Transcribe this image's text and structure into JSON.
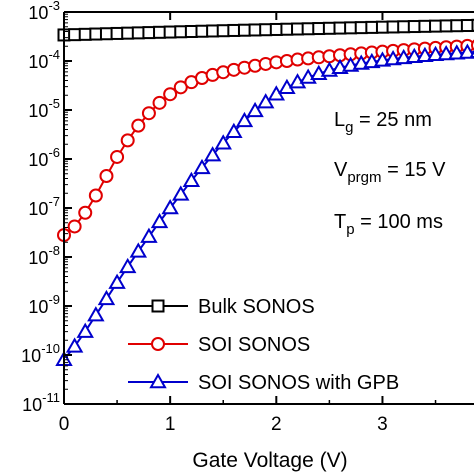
{
  "chart_data": {
    "type": "line",
    "xlabel": "Gate Voltage (V)",
    "ylabel": "",
    "xlim": [
      0,
      3.9
    ],
    "ylim": [
      1e-11,
      0.001
    ],
    "y_scale": "log",
    "grid": false,
    "legend_position": "bottom-right",
    "x_ticks": [
      "0",
      "1",
      "2",
      "3"
    ],
    "y_ticks": [
      {
        "base": "10",
        "exp": "-3"
      },
      {
        "base": "10",
        "exp": "-4"
      },
      {
        "base": "10",
        "exp": "-5"
      },
      {
        "base": "10",
        "exp": "-6"
      },
      {
        "base": "10",
        "exp": "-7"
      },
      {
        "base": "10",
        "exp": "-8"
      },
      {
        "base": "10",
        "exp": "-9"
      },
      {
        "base": "10",
        "exp": "-10"
      },
      {
        "base": "10",
        "exp": "-11"
      }
    ],
    "annotations": [
      {
        "main": "L",
        "sub": "g",
        "rest": " = 25 nm"
      },
      {
        "main": "V",
        "sub": "prgm",
        "rest": " = 15 V"
      },
      {
        "main": "T",
        "sub": "p",
        "rest": " = 100 ms"
      }
    ],
    "series": [
      {
        "name": "Bulk SONOS",
        "marker": "square",
        "color": "#000000",
        "x": [
          0.0,
          0.1,
          0.2,
          0.3,
          0.4,
          0.5,
          0.6,
          0.7,
          0.8,
          0.9,
          1.0,
          1.1,
          1.2,
          1.3,
          1.4,
          1.5,
          1.6,
          1.7,
          1.8,
          1.9,
          2.0,
          2.1,
          2.2,
          2.3,
          2.4,
          2.5,
          2.6,
          2.7,
          2.8,
          2.9,
          3.0,
          3.1,
          3.2,
          3.3,
          3.4,
          3.5,
          3.6,
          3.7,
          3.8,
          3.9
        ],
        "y": [
          0.00034,
          0.000345,
          0.00035,
          0.000355,
          0.00036,
          0.000365,
          0.00037,
          0.000375,
          0.00038,
          0.000385,
          0.00039,
          0.000395,
          0.0004,
          0.000405,
          0.00041,
          0.000415,
          0.00042,
          0.000425,
          0.00043,
          0.000435,
          0.00044,
          0.000445,
          0.00045,
          0.000455,
          0.00046,
          0.000465,
          0.00047,
          0.000475,
          0.00048,
          0.000485,
          0.00049,
          0.000495,
          0.0005,
          0.000505,
          0.00051,
          0.000515,
          0.00052,
          0.000525,
          0.00053,
          0.000535
        ]
      },
      {
        "name": "SOI SONOS",
        "marker": "circle",
        "color": "#e00000",
        "x": [
          0.0,
          0.1,
          0.2,
          0.3,
          0.4,
          0.5,
          0.6,
          0.7,
          0.8,
          0.9,
          1.0,
          1.1,
          1.2,
          1.3,
          1.4,
          1.5,
          1.6,
          1.7,
          1.8,
          1.9,
          2.0,
          2.1,
          2.2,
          2.3,
          2.4,
          2.5,
          2.6,
          2.7,
          2.8,
          2.9,
          3.0,
          3.1,
          3.2,
          3.3,
          3.4,
          3.5,
          3.6,
          3.7,
          3.8,
          3.9
        ],
        "y": [
          2.8e-08,
          4.2e-08,
          8e-08,
          1.8e-07,
          4.5e-07,
          1.1e-06,
          2.4e-06,
          4.8e-06,
          8.6e-06,
          1.4e-05,
          2.1e-05,
          2.9e-05,
          3.7e-05,
          4.5e-05,
          5.2e-05,
          5.9e-05,
          6.6e-05,
          7.3e-05,
          8e-05,
          8.7e-05,
          9.4e-05,
          0.0001,
          0.000107,
          0.000113,
          0.000119,
          0.000125,
          0.000131,
          0.000137,
          0.000143,
          0.000149,
          0.000155,
          0.000161,
          0.000167,
          0.000173,
          0.000179,
          0.000185,
          0.000191,
          0.000197,
          0.000203,
          0.00021
        ]
      },
      {
        "name": "SOI SONOS with GPB",
        "marker": "triangle",
        "color": "#0000cc",
        "x": [
          0.0,
          0.1,
          0.2,
          0.3,
          0.4,
          0.5,
          0.6,
          0.7,
          0.8,
          0.9,
          1.0,
          1.1,
          1.2,
          1.3,
          1.4,
          1.5,
          1.6,
          1.7,
          1.8,
          1.9,
          2.0,
          2.1,
          2.2,
          2.3,
          2.4,
          2.5,
          2.6,
          2.7,
          2.8,
          2.9,
          3.0,
          3.1,
          3.2,
          3.3,
          3.4,
          3.5,
          3.6,
          3.7,
          3.8,
          3.9
        ],
        "y": [
          8e-11,
          1.5e-10,
          3e-10,
          6.5e-10,
          1.4e-09,
          3e-09,
          6.3e-09,
          1.3e-08,
          2.6e-08,
          5.2e-08,
          1e-07,
          1.9e-07,
          3.6e-07,
          6.6e-07,
          1.2e-06,
          2.1e-06,
          3.6e-06,
          6e-06,
          9.6e-06,
          1.45e-05,
          2.1e-05,
          2.85e-05,
          3.7e-05,
          4.6e-05,
          5.5e-05,
          6.4e-05,
          7.3e-05,
          8.1e-05,
          8.9e-05,
          9.6e-05,
          0.000103,
          0.00011,
          0.000116,
          0.000122,
          0.000128,
          0.000134,
          0.000139,
          0.000144,
          0.000149,
          0.000154
        ]
      }
    ]
  }
}
